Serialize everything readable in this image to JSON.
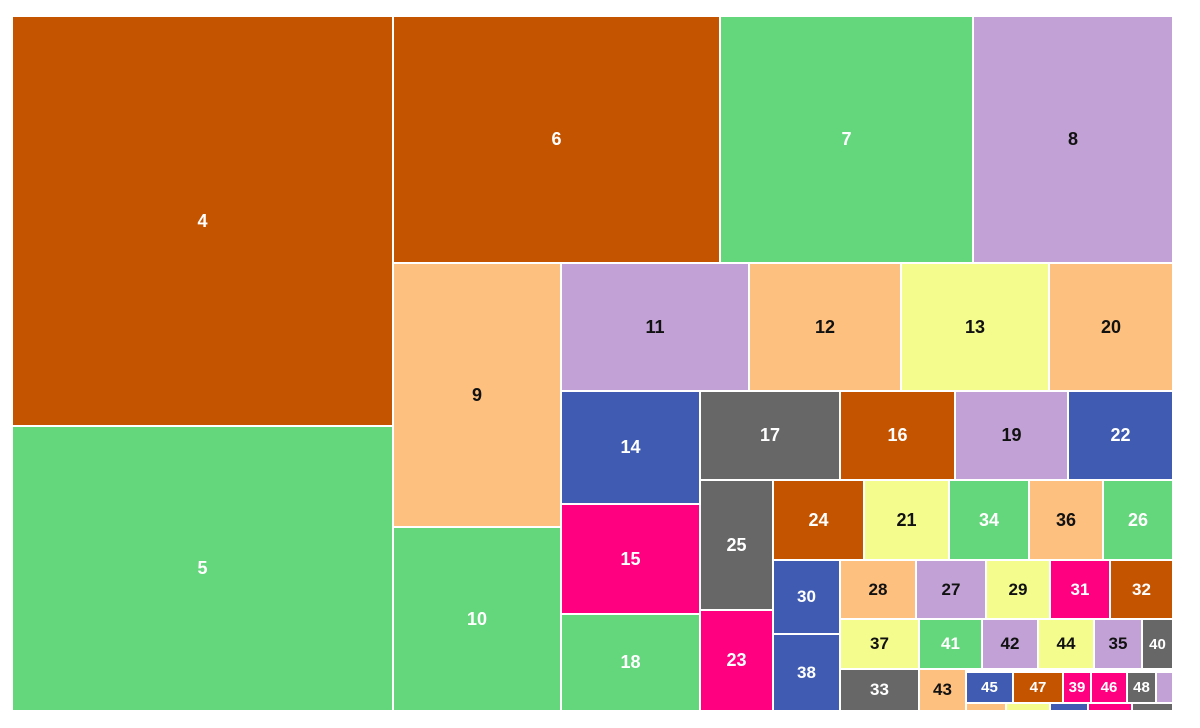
{
  "palette": {
    "dark-orange": "#C55400",
    "green": "#64D67C",
    "lavender": "#C2A2D6",
    "peach": "#FDC07E",
    "yellow": "#F3FC8C",
    "blue": "#405CB2",
    "magenta": "#FF0080",
    "gray": "#676767"
  },
  "chart_data": {
    "type": "treemap",
    "title": "",
    "items": [
      {
        "label": "4",
        "color": "dark-orange"
      },
      {
        "label": "5",
        "color": "green"
      },
      {
        "label": "6",
        "color": "dark-orange"
      },
      {
        "label": "7",
        "color": "green"
      },
      {
        "label": "8",
        "color": "lavender"
      },
      {
        "label": "9",
        "color": "peach"
      },
      {
        "label": "10",
        "color": "green"
      },
      {
        "label": "11",
        "color": "lavender"
      },
      {
        "label": "12",
        "color": "peach"
      },
      {
        "label": "13",
        "color": "yellow"
      },
      {
        "label": "20",
        "color": "peach"
      },
      {
        "label": "14",
        "color": "blue"
      },
      {
        "label": "15",
        "color": "magenta"
      },
      {
        "label": "18",
        "color": "green"
      },
      {
        "label": "17",
        "color": "gray"
      },
      {
        "label": "16",
        "color": "dark-orange"
      },
      {
        "label": "19",
        "color": "lavender"
      },
      {
        "label": "22",
        "color": "blue"
      },
      {
        "label": "25",
        "color": "gray"
      },
      {
        "label": "23",
        "color": "magenta"
      },
      {
        "label": "24",
        "color": "dark-orange"
      },
      {
        "label": "21",
        "color": "yellow"
      },
      {
        "label": "34",
        "color": "green"
      },
      {
        "label": "36",
        "color": "peach"
      },
      {
        "label": "26",
        "color": "green"
      },
      {
        "label": "30",
        "color": "blue"
      },
      {
        "label": "38",
        "color": "blue"
      },
      {
        "label": "28",
        "color": "peach"
      },
      {
        "label": "27",
        "color": "lavender"
      },
      {
        "label": "29",
        "color": "yellow"
      },
      {
        "label": "31",
        "color": "magenta"
      },
      {
        "label": "32",
        "color": "dark-orange"
      },
      {
        "label": "37",
        "color": "yellow"
      },
      {
        "label": "41",
        "color": "green"
      },
      {
        "label": "42",
        "color": "lavender"
      },
      {
        "label": "44",
        "color": "yellow"
      },
      {
        "label": "35",
        "color": "lavender"
      },
      {
        "label": "40",
        "color": "gray"
      },
      {
        "label": "33",
        "color": "gray"
      },
      {
        "label": "43",
        "color": "peach"
      },
      {
        "label": "45",
        "color": "blue"
      },
      {
        "label": "47",
        "color": "dark-orange"
      },
      {
        "label": "39",
        "color": "magenta"
      },
      {
        "label": "46",
        "color": "magenta"
      },
      {
        "label": "48",
        "color": "gray"
      },
      {
        "label": "",
        "color": "lavender"
      },
      {
        "label": "",
        "color": "peach"
      },
      {
        "label": "",
        "color": "yellow"
      },
      {
        "label": "",
        "color": "blue"
      },
      {
        "label": "",
        "color": "magenta"
      },
      {
        "label": "",
        "color": "gray"
      }
    ]
  }
}
